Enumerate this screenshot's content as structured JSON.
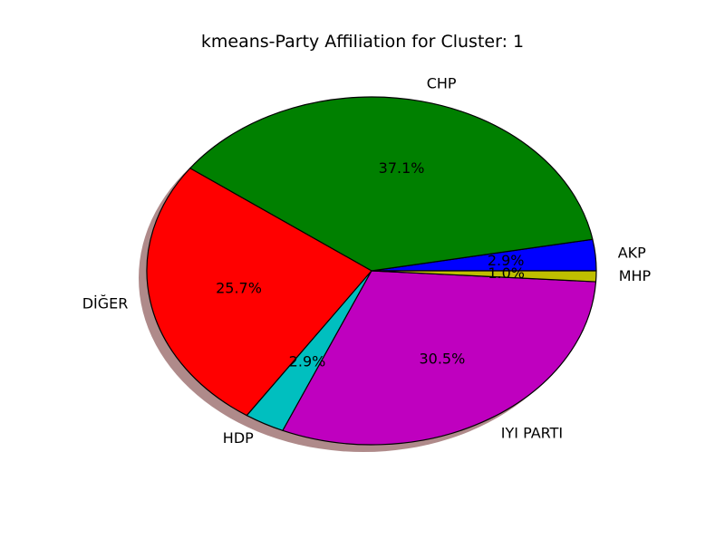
{
  "chart_data": {
    "type": "pie",
    "title": "kmeans-Party Affiliation for Cluster: 1",
    "legend": "none",
    "grid": false,
    "shadow": true,
    "slices": [
      {
        "label": "AKP",
        "value": 2.9,
        "pct_label": "2.9%",
        "color": "#0000ff"
      },
      {
        "label": "CHP",
        "value": 37.1,
        "pct_label": "37.1%",
        "color": "#008000"
      },
      {
        "label": "DİĞER",
        "value": 25.7,
        "pct_label": "25.7%",
        "color": "#ff0000"
      },
      {
        "label": "HDP",
        "value": 2.9,
        "pct_label": "2.9%",
        "color": "#00bfbf"
      },
      {
        "label": "IYI PARTI",
        "value": 30.5,
        "pct_label": "30.5%",
        "color": "#bf00bf"
      },
      {
        "label": "MHP",
        "value": 1.0,
        "pct_label": "1.0%",
        "color": "#bfbf00"
      }
    ]
  }
}
